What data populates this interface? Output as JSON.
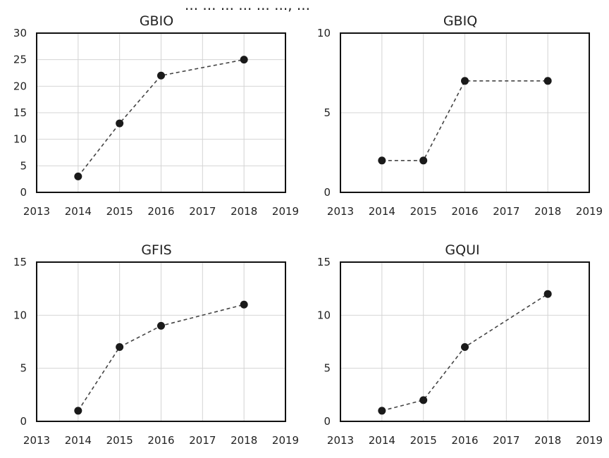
{
  "top_text": "...                    ...   ... ... ...  ..., ...",
  "chart_data": [
    {
      "type": "line",
      "title": "GBIO",
      "x": [
        2014,
        2015,
        2016,
        2018
      ],
      "y": [
        3,
        13,
        22,
        25
      ],
      "xlim": [
        2013,
        2019
      ],
      "ylim": [
        0,
        30
      ],
      "xticks": [
        2013,
        2014,
        2015,
        2016,
        2017,
        2018,
        2019
      ],
      "yticks": [
        0,
        5,
        10,
        15,
        20,
        25,
        30
      ],
      "grid": true,
      "line_style": "dashed"
    },
    {
      "type": "line",
      "title": "GBIQ",
      "x": [
        2014,
        2015,
        2016,
        2018
      ],
      "y": [
        2,
        2,
        7,
        7
      ],
      "xlim": [
        2013,
        2019
      ],
      "ylim": [
        0,
        10
      ],
      "xticks": [
        2013,
        2014,
        2015,
        2016,
        2017,
        2018,
        2019
      ],
      "yticks": [
        0,
        5,
        10
      ],
      "grid": true,
      "line_style": "dashed"
    },
    {
      "type": "line",
      "title": "GFIS",
      "x": [
        2014,
        2015,
        2016,
        2018
      ],
      "y": [
        1,
        7,
        9,
        11
      ],
      "xlim": [
        2013,
        2019
      ],
      "ylim": [
        0,
        15
      ],
      "xticks": [
        2013,
        2014,
        2015,
        2016,
        2017,
        2018,
        2019
      ],
      "yticks": [
        0,
        5,
        10,
        15
      ],
      "grid": true,
      "line_style": "dashed"
    },
    {
      "type": "line",
      "title": "GQUI",
      "x": [
        2014,
        2015,
        2016,
        2018
      ],
      "y": [
        1,
        2,
        7,
        12
      ],
      "xlim": [
        2013,
        2019
      ],
      "ylim": [
        0,
        15
      ],
      "xticks": [
        2013,
        2014,
        2015,
        2016,
        2017,
        2018,
        2019
      ],
      "yticks": [
        0,
        5,
        10,
        15
      ],
      "grid": true,
      "line_style": "dashed"
    }
  ]
}
